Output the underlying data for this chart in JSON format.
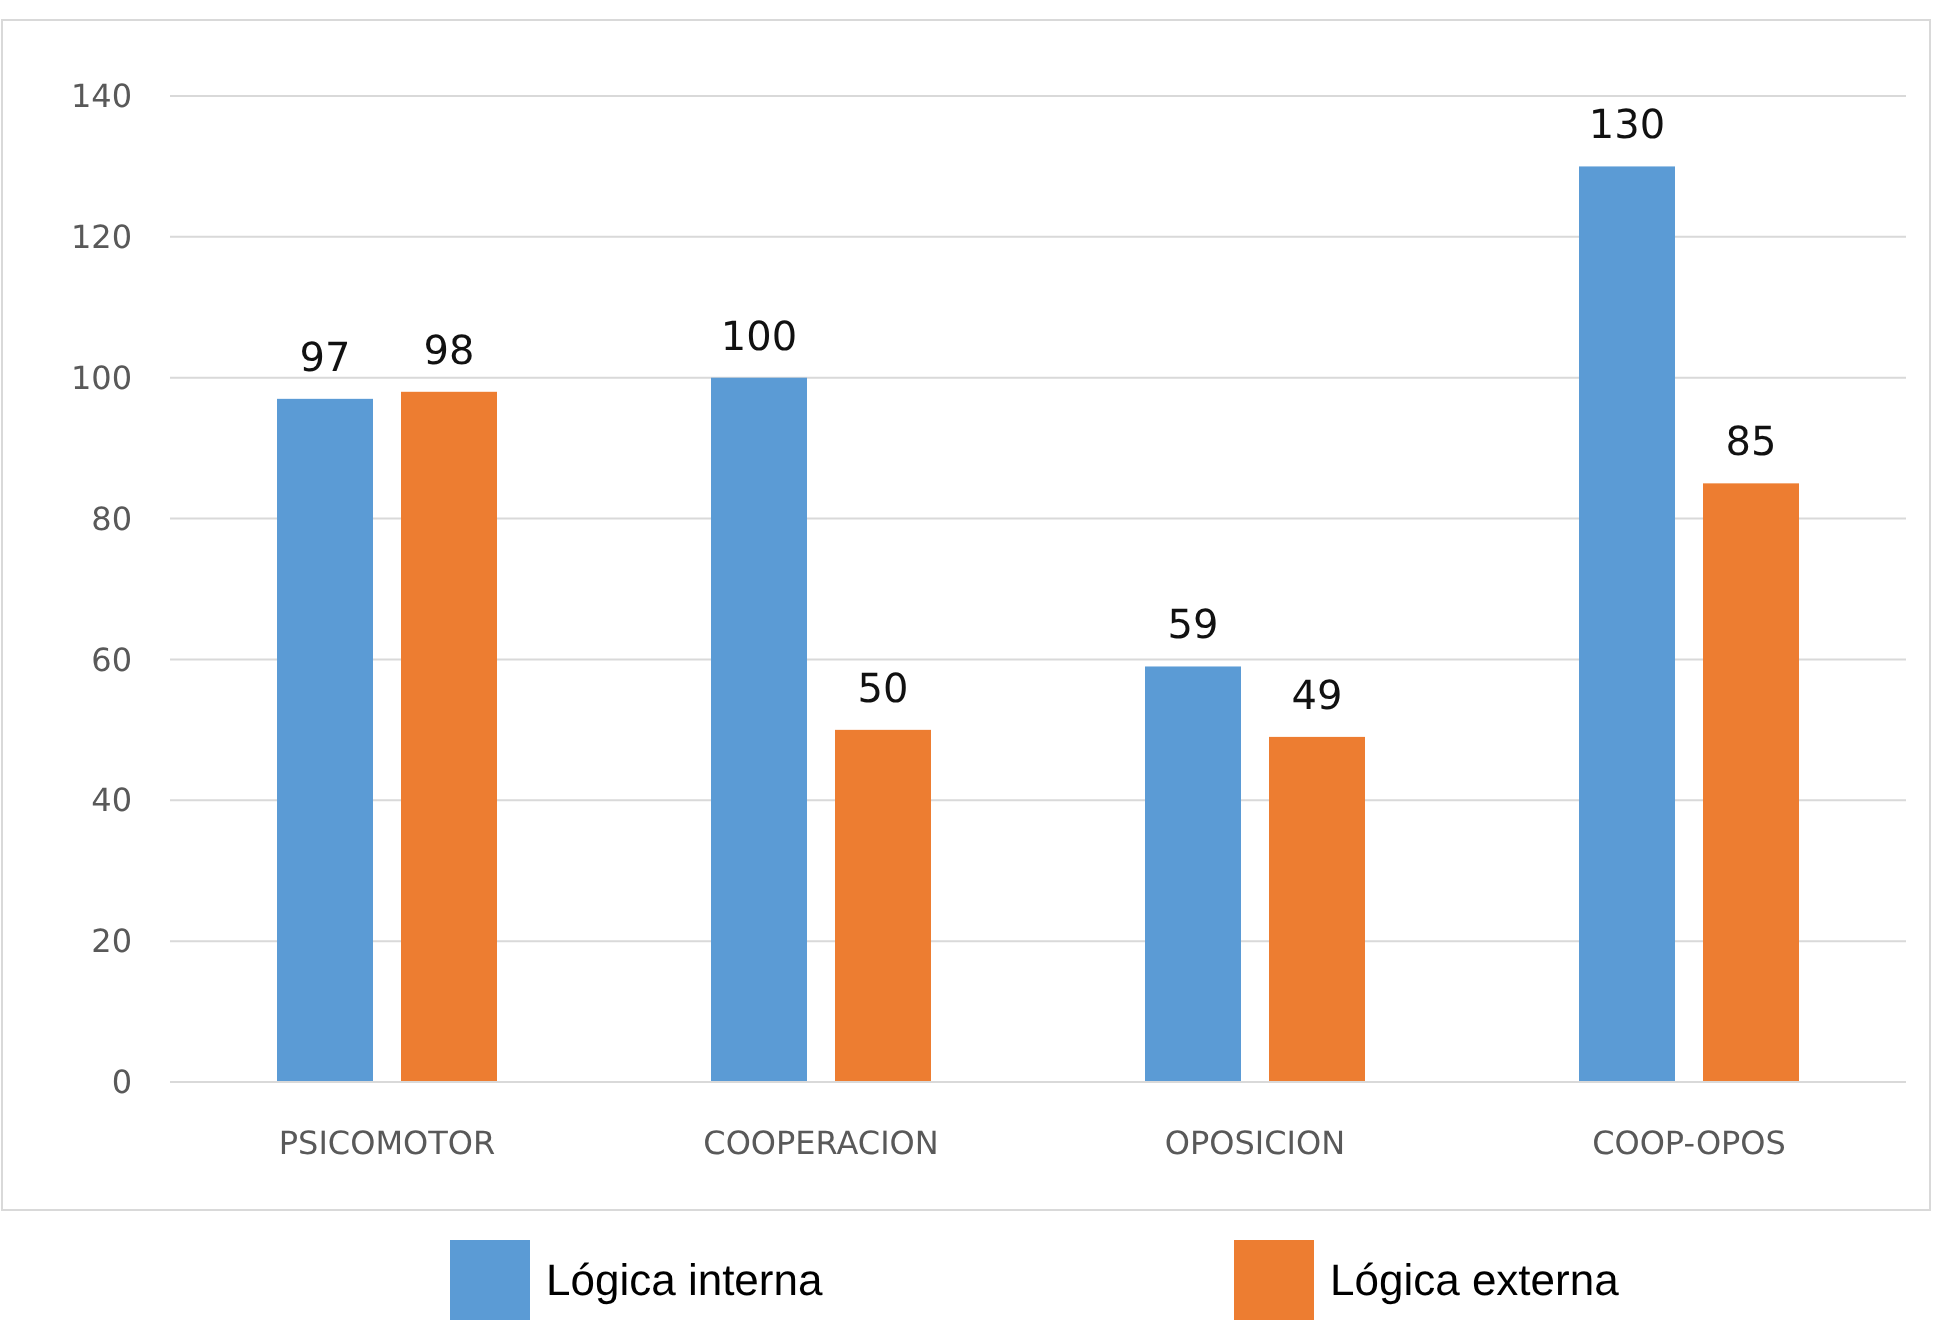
{
  "chart_data": {
    "type": "bar",
    "categories": [
      "PSICOMOTOR",
      "COOPERACION",
      "OPOSICION",
      "COOP-OPOS"
    ],
    "series": [
      {
        "name": "Lógica interna",
        "color": "#5b9bd5",
        "values": [
          97,
          100,
          59,
          130
        ]
      },
      {
        "name": "Lógica externa",
        "color": "#ed7d31",
        "values": [
          98,
          50,
          49,
          85
        ]
      }
    ],
    "ylim": [
      0,
      140
    ],
    "yticks": [
      0,
      20,
      40,
      60,
      80,
      100,
      120,
      140
    ],
    "grid": "y",
    "legend": "bottom",
    "data_labels": true
  }
}
